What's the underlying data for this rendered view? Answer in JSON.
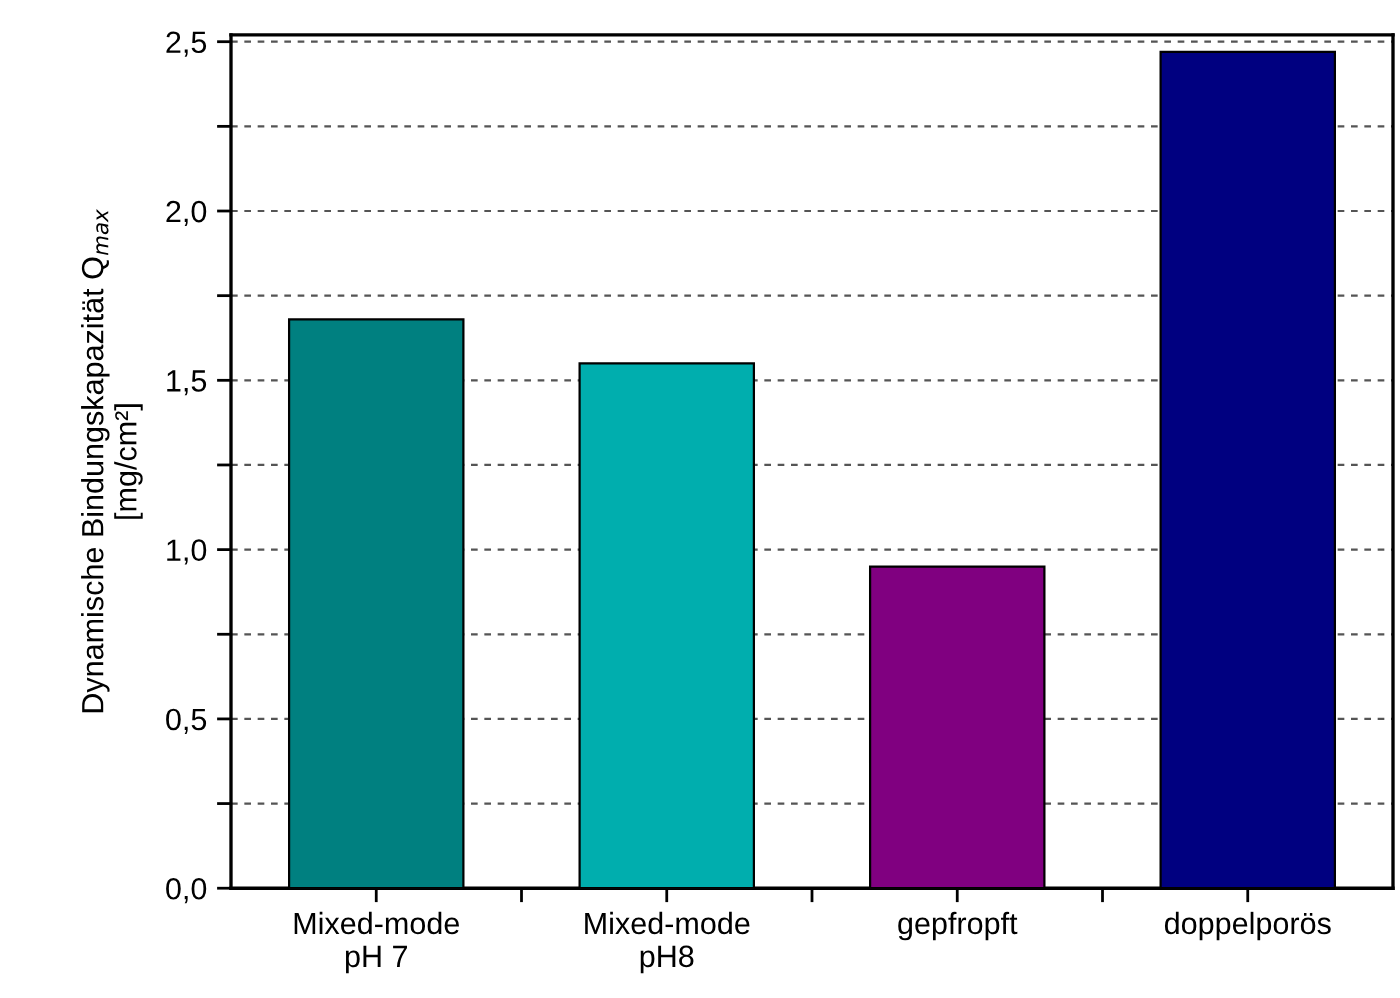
{
  "chart_data": {
    "type": "bar",
    "ylabel": "Dynamische Bindungskapazität Q$_{max}$\n[mg/cm²]",
    "categories": [
      "Mixed-mode\npH 7",
      "Mixed-mode\npH8",
      "gepfropft",
      "doppelporös"
    ],
    "values": [
      1.68,
      1.55,
      0.95,
      2.47
    ],
    "colors": [
      "#008080",
      "#00aeae",
      "#800080",
      "#000080"
    ],
    "ylim": [
      0,
      2.52
    ],
    "yticks": [
      {
        "value": 0,
        "label": "0,0"
      },
      {
        "value": 0.25,
        "label": null
      },
      {
        "value": 0.5,
        "label": "0,5"
      },
      {
        "value": 0.75,
        "label": null
      },
      {
        "value": 1.0,
        "label": "1,0"
      },
      {
        "value": 1.25,
        "label": null
      },
      {
        "value": 1.5,
        "label": "1,5"
      },
      {
        "value": 1.75,
        "label": null
      },
      {
        "value": 2.0,
        "label": "2,0"
      },
      {
        "value": 2.25,
        "label": null
      },
      {
        "value": 2.5,
        "label": "2,5"
      }
    ],
    "grid": "y"
  }
}
